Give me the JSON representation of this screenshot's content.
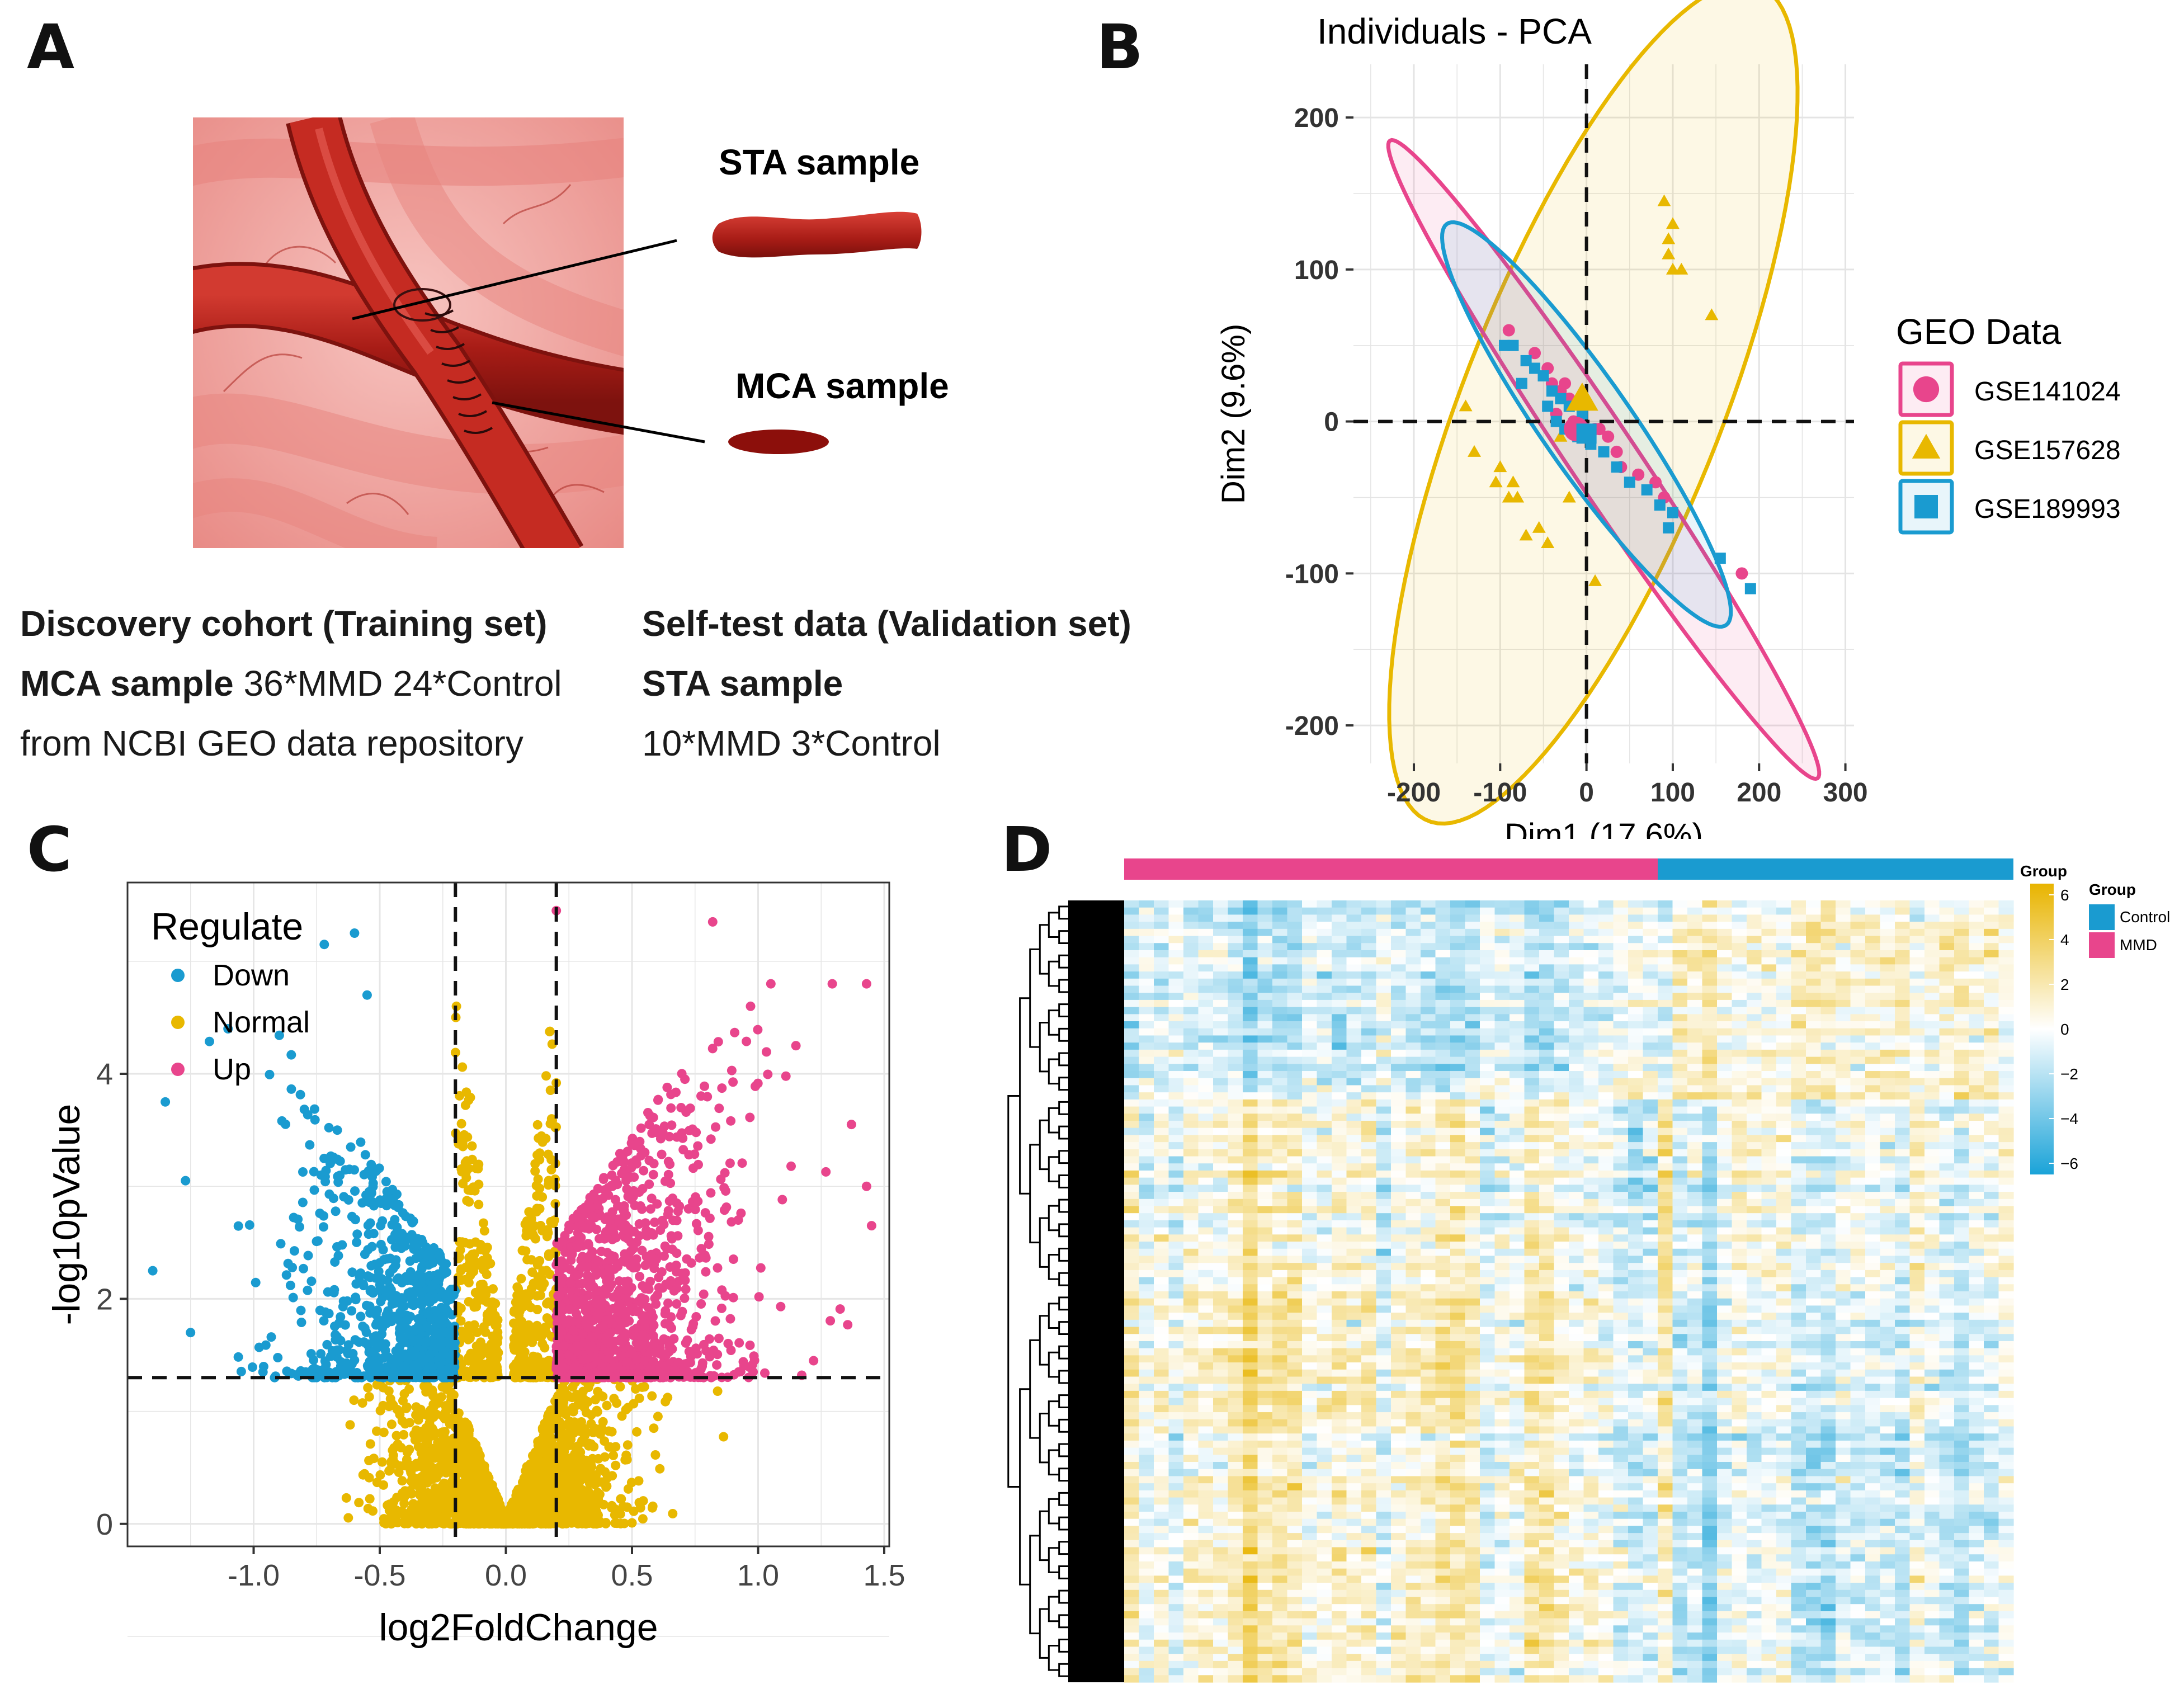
{
  "panels": {
    "a": "A",
    "b": "B",
    "c": "C",
    "d": "D"
  },
  "panel_a": {
    "sta_label": "STA sample",
    "mca_label": "MCA sample",
    "discovery_title": "Discovery cohort (Training set)",
    "discovery_line2_bold": "MCA sample",
    "discovery_line2_rest": " 36*MMD 24*Control",
    "discovery_line3": "from NCBI GEO data repository",
    "validation_title": "Self-test data (Validation set)",
    "validation_line2": "STA sample",
    "validation_line3": "10*MMD 3*Control",
    "colors": {
      "artery": "#b3221c",
      "background": "#f0a4a0"
    }
  },
  "chart_data": [
    {
      "id": "pca",
      "type": "scatter",
      "title": "Individuals - PCA",
      "xlabel": "Dim1 (17.6%)",
      "ylabel": "Dim2 (9.6%)",
      "xlim": [
        -270,
        310
      ],
      "ylim": [
        -225,
        235
      ],
      "xticks": [
        -200,
        -100,
        0,
        100,
        200,
        300
      ],
      "xtick_labels": [
        "-200",
        "-100",
        "0",
        "100",
        "200",
        "300"
      ],
      "yticks": [
        -200,
        -100,
        0,
        100,
        200
      ],
      "ytick_labels": [
        "-200",
        "-100",
        "0",
        "100",
        "200"
      ],
      "legend_title": "GEO Data",
      "series": [
        {
          "name": "GSE141024",
          "color": "#e8458c",
          "marker": "circle",
          "points": [
            [
              -90,
              60
            ],
            [
              -60,
              45
            ],
            [
              -45,
              35
            ],
            [
              -40,
              25
            ],
            [
              -30,
              20
            ],
            [
              -20,
              15
            ],
            [
              -35,
              5
            ],
            [
              -15,
              0
            ],
            [
              0,
              -5
            ],
            [
              10,
              -5
            ],
            [
              15,
              -5
            ],
            [
              25,
              -10
            ],
            [
              35,
              -20
            ],
            [
              40,
              -30
            ],
            [
              60,
              -35
            ],
            [
              80,
              -40
            ],
            [
              90,
              -50
            ],
            [
              180,
              -100
            ],
            [
              -25,
              25
            ]
          ],
          "ellipse": {
            "cx": 20,
            "cy": -25,
            "rx": 325,
            "ry": 30,
            "angle": -40
          }
        },
        {
          "name": "GSE157628",
          "color": "#e8b800",
          "marker": "triangle",
          "points": [
            [
              -10,
              15
            ],
            [
              90,
              145
            ],
            [
              100,
              130
            ],
            [
              95,
              120
            ],
            [
              95,
              110
            ],
            [
              100,
              100
            ],
            [
              110,
              100
            ],
            [
              145,
              70
            ],
            [
              -140,
              10
            ],
            [
              -130,
              -20
            ],
            [
              -100,
              -30
            ],
            [
              -105,
              -40
            ],
            [
              -85,
              -40
            ],
            [
              -90,
              -50
            ],
            [
              -80,
              -50
            ],
            [
              -70,
              -75
            ],
            [
              -55,
              -70
            ],
            [
              -45,
              -80
            ],
            [
              -20,
              -50
            ],
            [
              10,
              -105
            ],
            [
              -30,
              -10
            ]
          ],
          "ellipse": {
            "cx": 8,
            "cy": 12,
            "rx": 340,
            "ry": 130,
            "angle": 51
          }
        },
        {
          "name": "GSE189993",
          "color": "#1a9bd0",
          "marker": "square",
          "points": [
            [
              -95,
              50
            ],
            [
              -85,
              50
            ],
            [
              -70,
              40
            ],
            [
              -60,
              35
            ],
            [
              -50,
              30
            ],
            [
              -40,
              20
            ],
            [
              -30,
              15
            ],
            [
              -45,
              10
            ],
            [
              -20,
              10
            ],
            [
              -35,
              0
            ],
            [
              -25,
              -5
            ],
            [
              -10,
              -10
            ],
            [
              0,
              -10
            ],
            [
              -5,
              5
            ],
            [
              5,
              -15
            ],
            [
              20,
              -20
            ],
            [
              35,
              -30
            ],
            [
              50,
              -40
            ],
            [
              70,
              -45
            ],
            [
              85,
              -55
            ],
            [
              95,
              -70
            ],
            [
              100,
              -60
            ],
            [
              155,
              -90
            ],
            [
              190,
              -110
            ],
            [
              -75,
              25
            ]
          ],
          "ellipse": {
            "cx": 0,
            "cy": -2,
            "rx": 210,
            "ry": 40,
            "angle": -38
          }
        }
      ]
    },
    {
      "id": "volcano",
      "type": "scatter",
      "title": "",
      "xlabel": "log2FoldChange",
      "ylabel": "-log10pValue",
      "xlim": [
        -1.5,
        1.52
      ],
      "ylim": [
        -0.2,
        5.7
      ],
      "xticks": [
        -1.0,
        -0.5,
        0.0,
        0.5,
        1.0,
        1.5
      ],
      "xtick_labels": [
        "-1.0",
        "-0.5",
        "0.0",
        "0.5",
        "1.0",
        "1.5"
      ],
      "yticks": [
        0,
        2,
        4
      ],
      "ytick_labels": [
        "0",
        "2",
        "4"
      ],
      "thresholds": {
        "fc": [
          -0.2,
          0.2
        ],
        "p": 1.3
      },
      "legend_title": "Regulate",
      "series": [
        {
          "name": "Down",
          "color": "#1a9bd0"
        },
        {
          "name": "Normal",
          "color": "#e8b800"
        },
        {
          "name": "Up",
          "color": "#e8458c"
        }
      ],
      "highlight_points": [
        [
          -0.6,
          5.25
        ],
        [
          -0.72,
          5.15
        ],
        [
          -0.55,
          4.7
        ],
        [
          -1.35,
          3.75
        ],
        [
          -1.4,
          2.25
        ],
        [
          -1.27,
          3.05
        ],
        [
          -1.25,
          1.7
        ],
        [
          0.2,
          5.45
        ],
        [
          0.82,
          5.35
        ],
        [
          1.43,
          4.8
        ],
        [
          1.37,
          3.55
        ],
        [
          1.43,
          3.0
        ],
        [
          1.45,
          2.65
        ],
        [
          0.97,
          4.6
        ],
        [
          1.15,
          4.25
        ],
        [
          1.22,
          1.45
        ]
      ]
    },
    {
      "id": "heatmap",
      "type": "heatmap",
      "legend_title": "Group",
      "annotation_label": "Group",
      "groups": [
        {
          "name": "MMD",
          "color": "#e8458c",
          "count": 36
        },
        {
          "name": "Control",
          "color": "#1a9bd0",
          "count": 24
        }
      ],
      "color_scale": {
        "min": -6.5,
        "max": 6.5,
        "low": "#1aa3d8",
        "mid": "#ffffff",
        "high": "#e8b400"
      },
      "scale_ticks": [
        6,
        4,
        2,
        0,
        -2,
        -4,
        -6
      ],
      "scale_tick_labels": [
        "6",
        "4",
        "2",
        "0",
        "−2",
        "−4",
        "−6"
      ]
    }
  ]
}
